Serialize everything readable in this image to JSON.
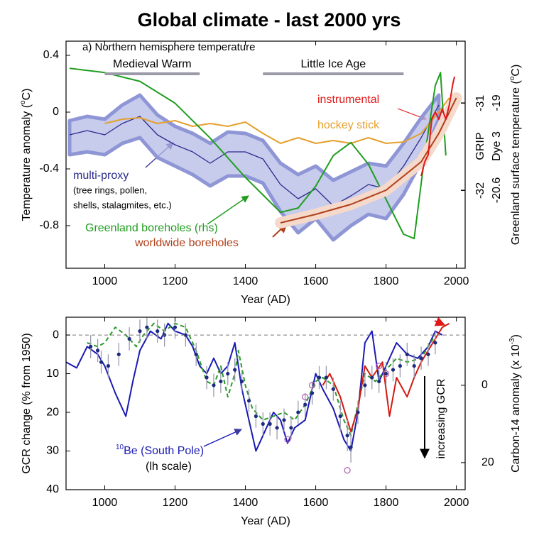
{
  "chart_data": [
    {
      "type": "line",
      "title": "Global climate - last 2000 yrs",
      "subtitle": "a) Northern hemisphere temperature",
      "xlabel": "Year (AD)",
      "ylabel": [
        "Temperature anomaly (",
        "o",
        "C)"
      ],
      "y2label": [
        "Greenland surface temperature (",
        "o",
        "C)"
      ],
      "xlim": [
        890,
        2025
      ],
      "xticks": [
        1000,
        1200,
        1400,
        1600,
        1800,
        2000
      ],
      "ylim": [
        -1.1,
        0.5
      ],
      "yticks": [
        -0.8,
        -0.4,
        0,
        0.4
      ],
      "y2name": "GRIP",
      "y2lim": [
        -32.89,
        -30.29
      ],
      "y2ticks": [
        -31,
        -32
      ],
      "y3name": "Dye 3",
      "y3lim": [
        -22.03,
        -17.87
      ],
      "y3ticks": [
        -19,
        -20.6
      ],
      "periods": [
        {
          "label": "Medieval Warm",
          "start": 1000,
          "end": 1270
        },
        {
          "label": "Little Ice Age",
          "start": 1450,
          "end": 1850
        }
      ],
      "series": [
        {
          "name": "multi-proxy",
          "note": [
            "(tree rings, pollen,",
            "shells, stalagmites, etc.)"
          ],
          "color": "#2b2b8c",
          "band_color": "#b4b9e6",
          "x": [
            900,
            950,
            1000,
            1050,
            1100,
            1150,
            1200,
            1250,
            1300,
            1350,
            1400,
            1450,
            1500,
            1550,
            1600,
            1650,
            1700,
            1750,
            1800,
            1850,
            1900,
            1950
          ],
          "values": [
            -0.16,
            -0.13,
            -0.16,
            -0.08,
            -0.03,
            -0.16,
            -0.23,
            -0.28,
            -0.36,
            -0.28,
            -0.28,
            -0.33,
            -0.51,
            -0.61,
            -0.54,
            -0.66,
            -0.59,
            -0.51,
            -0.54,
            -0.38,
            -0.18,
            0.05
          ],
          "upper": [
            -0.06,
            -0.03,
            -0.05,
            0.05,
            0.12,
            -0.02,
            -0.1,
            -0.15,
            -0.22,
            -0.14,
            -0.15,
            -0.2,
            -0.36,
            -0.44,
            -0.38,
            -0.48,
            -0.42,
            -0.36,
            -0.38,
            -0.22,
            -0.04,
            0.12
          ],
          "lower": [
            -0.3,
            -0.28,
            -0.3,
            -0.22,
            -0.18,
            -0.32,
            -0.38,
            -0.44,
            -0.52,
            -0.45,
            -0.45,
            -0.5,
            -0.7,
            -0.85,
            -0.75,
            -0.9,
            -0.8,
            -0.72,
            -0.75,
            -0.58,
            -0.35,
            -0.05
          ]
        },
        {
          "name": "hockey stick",
          "color": "#e5a02e",
          "x": [
            1000,
            1050,
            1100,
            1150,
            1200,
            1250,
            1300,
            1350,
            1400,
            1450,
            1500,
            1550,
            1600,
            1650,
            1700,
            1750,
            1800,
            1850,
            1900,
            1950,
            1980
          ],
          "values": [
            -0.08,
            -0.05,
            -0.04,
            -0.08,
            -0.06,
            -0.1,
            -0.08,
            -0.1,
            -0.07,
            -0.15,
            -0.22,
            -0.18,
            -0.22,
            -0.2,
            -0.22,
            -0.18,
            -0.22,
            -0.21,
            -0.15,
            0.0,
            0.1
          ]
        },
        {
          "name": "Greenland boreholes (rhs)",
          "color": "#1f9e1f",
          "axis": "y2",
          "x": [
            900,
            1000,
            1100,
            1200,
            1300,
            1400,
            1500,
            1550,
            1600,
            1650,
            1700,
            1750,
            1800,
            1850,
            1880,
            1910,
            1940,
            1955,
            1970
          ],
          "values": [
            -30.6,
            -30.65,
            -30.75,
            -31.0,
            -31.4,
            -31.85,
            -32.25,
            -32.2,
            -31.95,
            -31.6,
            -31.45,
            -31.7,
            -32.1,
            -32.5,
            -32.55,
            -31.6,
            -30.8,
            -30.65,
            -31.6
          ]
        },
        {
          "name": "worldwide boreholes",
          "color": "#b0401c",
          "halo_color": "#f5d9cb",
          "x": [
            1500,
            1600,
            1700,
            1800,
            1900,
            1950,
            2000
          ],
          "values": [
            -0.78,
            -0.72,
            -0.65,
            -0.55,
            -0.35,
            -0.15,
            0.1
          ]
        },
        {
          "name": "instrumental",
          "color": "#e01818",
          "x": [
            1900,
            1910,
            1920,
            1930,
            1940,
            1950,
            1960,
            1970,
            1980,
            1990,
            1995
          ],
          "values": [
            -0.45,
            -0.35,
            -0.3,
            -0.05,
            0.0,
            -0.05,
            0.02,
            -0.05,
            0.05,
            0.2,
            0.25
          ]
        }
      ]
    },
    {
      "type": "line",
      "xlabel": "Year (AD)",
      "ylabel": [
        "GCR change (% from 1950)"
      ],
      "y2label": [
        "Carbon-14 anomaly (x 10",
        "-3",
        ")"
      ],
      "annotation": "increasing GCR",
      "xlim": [
        890,
        2025
      ],
      "xticks": [
        1000,
        1200,
        1400,
        1600,
        1800,
        2000
      ],
      "ylim": [
        40,
        -4.6
      ],
      "yticks": [
        0,
        10,
        20,
        30,
        40
      ],
      "zero_line": 0,
      "y2lim": [
        27,
        -17.6
      ],
      "y2ticks": [
        0,
        20
      ],
      "series": [
        {
          "name": "Be (South Pole)",
          "name_sup": "10",
          "note": [
            "(lh scale)"
          ],
          "color": "#1a1ab4",
          "x": [
            890,
            920,
            950,
            980,
            1000,
            1030,
            1060,
            1080,
            1100,
            1130,
            1160,
            1180,
            1200,
            1230,
            1250,
            1270,
            1290,
            1310,
            1330,
            1350,
            1370,
            1390,
            1410,
            1430,
            1450,
            1480,
            1500,
            1520,
            1540,
            1570,
            1600,
            1620,
            1650,
            1680,
            1700,
            1720,
            1740,
            1760,
            1780,
            1800,
            1830,
            1860,
            1890,
            1920,
            1940,
            1960
          ],
          "values": [
            7,
            8.5,
            3,
            5,
            8,
            15,
            21,
            12,
            4,
            -1,
            1,
            -3,
            -1,
            0,
            3,
            8,
            10,
            6,
            10,
            8,
            2,
            14,
            22,
            30,
            26,
            20,
            22,
            28,
            24,
            22,
            10,
            14,
            19,
            27,
            30,
            20,
            2,
            -1,
            12,
            8,
            2,
            5,
            6,
            3,
            -1,
            0
          ]
        },
        {
          "color": "#2a9a2a",
          "dashed": true,
          "x": [
            950,
            980,
            1000,
            1030,
            1060,
            1090,
            1110,
            1140,
            1170,
            1200,
            1230,
            1260,
            1290,
            1310,
            1330,
            1350,
            1370,
            1380,
            1400,
            1420,
            1450,
            1480,
            1510,
            1540,
            1570,
            1600,
            1620,
            1650,
            1680,
            1700,
            1720,
            1740,
            1770,
            1800,
            1830,
            1860,
            1900,
            1940
          ],
          "values": [
            2,
            3,
            2,
            -2,
            0,
            3,
            0,
            -3,
            -1,
            -3,
            -2,
            4,
            12,
            13,
            8,
            16,
            10,
            4,
            13,
            19,
            22,
            21,
            20,
            22,
            18,
            12,
            11,
            13,
            22,
            26,
            18,
            10,
            12,
            9,
            6,
            7,
            6,
            0
          ]
        },
        {
          "color": "#d01a10",
          "axis": "y2",
          "x": [
            1620,
            1640,
            1670,
            1700,
            1720,
            1740,
            1760,
            1790,
            1810,
            1830,
            1860,
            1880,
            1900,
            1940,
            1960,
            1980
          ],
          "values": [
            0,
            -3,
            3,
            12,
            6,
            -5,
            -2,
            -6,
            8,
            -2,
            3,
            -2,
            -6,
            -12,
            -15,
            -16
          ]
        },
        {
          "color": "#1c2a80",
          "marker": "dot",
          "error_color": "#9a9ab0",
          "x": [
            960,
            980,
            990,
            1010,
            1040,
            1070,
            1100,
            1120,
            1150,
            1170,
            1200,
            1230,
            1260,
            1290,
            1310,
            1330,
            1350,
            1370,
            1390,
            1410,
            1430,
            1450,
            1470,
            1490,
            1510,
            1530,
            1550,
            1570,
            1590,
            1610,
            1630,
            1650,
            1670,
            1690,
            1700,
            1720,
            1740,
            1760,
            1780,
            1800,
            1820,
            1840,
            1860,
            1880,
            1900,
            1920,
            1940
          ],
          "values": [
            3,
            4,
            7,
            8,
            5,
            1,
            -1,
            -2,
            -1,
            0,
            -2,
            0,
            5,
            11,
            13,
            12,
            10,
            9,
            12,
            17,
            21,
            23,
            23,
            24,
            22,
            24,
            20,
            18,
            15,
            11,
            11,
            14,
            21,
            26,
            29,
            20,
            13,
            11,
            12,
            10,
            9,
            8,
            5,
            8,
            6,
            5,
            2
          ],
          "errors": [
            3,
            3,
            3,
            3,
            3,
            3,
            3,
            3,
            3,
            3,
            3,
            3,
            3,
            3,
            3,
            3,
            3,
            3,
            3,
            3,
            3,
            3,
            3,
            3,
            3,
            3,
            3,
            3,
            3,
            3,
            3,
            3,
            4,
            4,
            4,
            3,
            3,
            3,
            3,
            3,
            3,
            3,
            3,
            3,
            3,
            3,
            3
          ]
        },
        {
          "color": "#b05cb0",
          "marker": "ring",
          "x": [
            1520,
            1570,
            1590,
            1690,
            1780,
            1800
          ],
          "values": [
            27,
            16,
            13,
            35,
            8,
            10
          ]
        }
      ]
    }
  ]
}
